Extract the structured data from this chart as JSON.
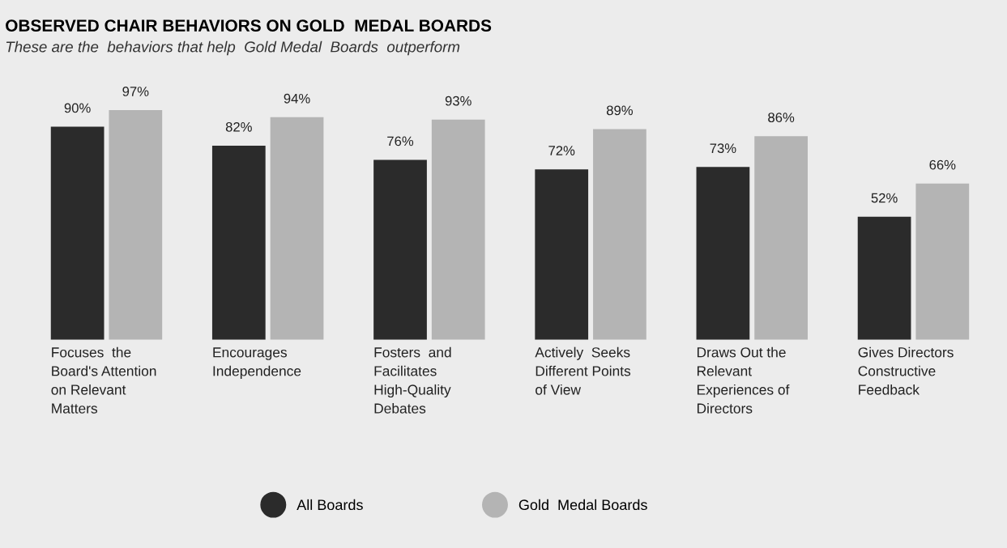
{
  "chart_data": {
    "type": "bar",
    "title": "OBSERVED CHAIR BEHAVIORS ON GOLD  MEDAL BOARDS",
    "subtitle": "These are the  behaviors that help  Gold Medal  Boards  outperform",
    "categories": [
      "Focuses  the\nBoard's Attention\non Relevant\nMatters",
      "Encourages\nIndependence",
      "Fosters  and\nFacilitates\nHigh-Quality\nDebates",
      "Actively  Seeks\nDifferent Points\nof View",
      "Draws Out the\nRelevant\nExperiences of\nDirectors",
      "Gives Directors\nConstructive\nFeedback"
    ],
    "series": [
      {
        "name": "All Boards",
        "color": "#2b2b2b",
        "values": [
          90,
          82,
          76,
          72,
          73,
          52
        ],
        "value_labels": [
          "90%",
          "82%",
          "76%",
          "72%",
          "73%",
          "52%"
        ]
      },
      {
        "name": "Gold  Medal Boards",
        "color": "#b4b4b4",
        "values": [
          97,
          94,
          93,
          89,
          86,
          66
        ],
        "value_labels": [
          "97%",
          "94%",
          "93%",
          "89%",
          "86%",
          "66%"
        ]
      }
    ],
    "legend": "bottom"
  }
}
